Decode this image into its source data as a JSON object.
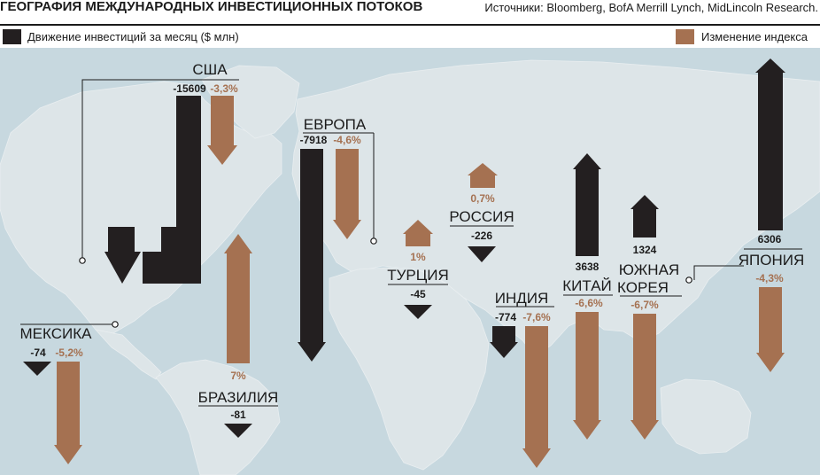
{
  "title": "ГЕОГРАФИЯ МЕЖДУНАРОДНЫХ ИНВЕСТИЦИОННЫХ ПОТОКОВ",
  "source": "Источники: Bloomberg, BofA Merrill Lynch, MidLincoln Research.",
  "legend": {
    "flow_label": "Движение инвестиций за месяц ($ млн)",
    "index_label": "Изменение индекса"
  },
  "colors": {
    "ocean": "#c7d8df",
    "land": "#dde5e8",
    "flow": "#231f20",
    "index": "#a57151",
    "text": "#1b1b1b"
  },
  "chart_data": {
    "type": "bar",
    "series": [
      {
        "name": "Движение инвестиций за месяц ($ млн)"
      },
      {
        "name": "Изменение индекса"
      }
    ],
    "regions": [
      {
        "name": "США",
        "flow": "-15609",
        "index": "-3,3%"
      },
      {
        "name": "ЕВРОПА",
        "flow": "-7918",
        "index": "-4,6%"
      },
      {
        "name": "МЕКСИКА",
        "flow": "-74",
        "index": "-5,2%"
      },
      {
        "name": "БРАЗИЛИЯ",
        "flow": "-81",
        "index": "7%"
      },
      {
        "name": "ТУРЦИЯ",
        "flow": "-45",
        "index": "1%"
      },
      {
        "name": "РОССИЯ",
        "flow": "-226",
        "index": "0,7%"
      },
      {
        "name": "ИНДИЯ",
        "flow": "-774",
        "index": "-7,6%"
      },
      {
        "name": "КИТАЙ",
        "flow": "3638",
        "index": "-6,6%"
      },
      {
        "name": "ЮЖНАЯ КОРЕЯ",
        "flow": "1324",
        "index": "-6,7%"
      },
      {
        "name": "ЯПОНИЯ",
        "flow": "6306",
        "index": "-4,3%"
      }
    ]
  }
}
